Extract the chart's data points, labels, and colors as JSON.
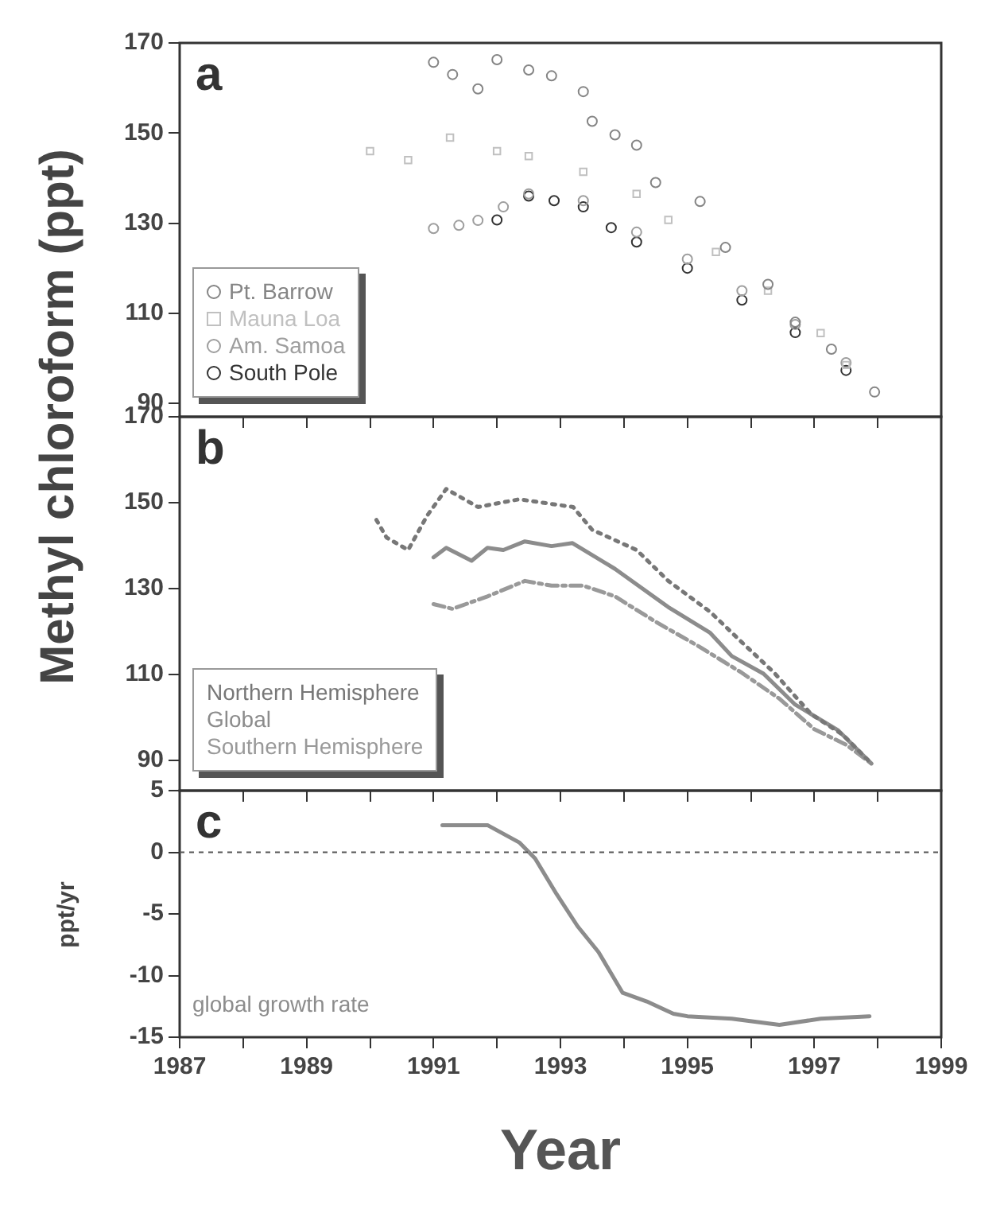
{
  "chart_data": [
    {
      "type": "scatter",
      "ylabel": "Methyl chloroform (ppt)",
      "annotations": [
        "a"
      ],
      "xlim": [
        1987,
        1999
      ],
      "ylim": [
        87,
        170
      ],
      "yticks": [
        90,
        110,
        130,
        150,
        170
      ],
      "xticks": [
        1987,
        {
          "value": 1988,
          "label": null
        },
        1989,
        {
          "value": 1990,
          "label": null
        },
        1991,
        {
          "value": 1992,
          "label": null
        },
        1993,
        {
          "value": 1994,
          "label": null
        },
        1995,
        {
          "value": 1996,
          "label": null
        },
        1997,
        {
          "value": 1998,
          "label": null
        },
        1999
      ],
      "tick_labels": "y",
      "grid": false,
      "legend": "bottom left",
      "series": [
        {
          "name": "Pt. Barrow",
          "color": "#858585",
          "marker": "circle",
          "x": [
            1991.0,
            1991.3,
            1991.7,
            1992.0,
            1992.5,
            1992.86,
            1993.36,
            1993.5,
            1993.86,
            1994.2,
            1994.5,
            1995.2,
            1995.6,
            1996.27,
            1996.7,
            1997.27,
            1997.95
          ],
          "values": [
            165.7,
            163,
            159.8,
            166.3,
            164,
            162.7,
            159.2,
            152.6,
            149.6,
            147.3,
            139,
            134.8,
            124.6,
            116.4,
            108,
            102,
            92.5
          ]
        },
        {
          "name": "Mauna Loa",
          "color": "#c0c0c0",
          "marker": "square",
          "x": [
            1990.0,
            1990.6,
            1991.26,
            1992.0,
            1992.5,
            1993.36,
            1994.2,
            1994.7,
            1995.45,
            1996.27,
            1997.1,
            1997.5
          ],
          "values": [
            146,
            144,
            149,
            146,
            144.9,
            141.4,
            136.5,
            130.7,
            123.6,
            115,
            105.6,
            98.5
          ]
        },
        {
          "name": "Am. Samoa",
          "color": "#9e9e9e",
          "marker": "circle",
          "x": [
            1991.0,
            1991.4,
            1991.7,
            1992.1,
            1992.5,
            1993.36,
            1994.2,
            1995.0,
            1995.86,
            1996.7,
            1997.5
          ],
          "values": [
            128.8,
            129.5,
            130.6,
            133.6,
            136.5,
            135,
            128,
            122,
            115,
            107.5,
            99
          ]
        },
        {
          "name": "South Pole",
          "color": "#333333",
          "marker": "circle",
          "x": [
            1992.0,
            1992.5,
            1992.9,
            1993.36,
            1993.8,
            1994.2,
            1995.0,
            1995.86,
            1996.7,
            1997.5
          ],
          "values": [
            130.7,
            136,
            135,
            133.6,
            129,
            125.8,
            120,
            112.9,
            105.7,
            97.3
          ]
        }
      ]
    },
    {
      "type": "line",
      "annotations": [
        "b"
      ],
      "xlim": [
        1987,
        1999
      ],
      "ylim": [
        83,
        170
      ],
      "yticks": [
        90,
        110,
        130,
        150,
        170
      ],
      "xticks": [
        1987,
        {
          "value": 1988,
          "label": null
        },
        1989,
        {
          "value": 1990,
          "label": null
        },
        1991,
        {
          "value": 1992,
          "label": null
        },
        1993,
        {
          "value": 1994,
          "label": null
        },
        1995,
        {
          "value": 1996,
          "label": null
        },
        1997,
        {
          "value": 1998,
          "label": null
        },
        1999
      ],
      "tick_labels": "y",
      "grid": false,
      "legend": "bottom left",
      "series": [
        {
          "name": "Northern Hemisphere",
          "color": "#777777",
          "line_style": "dotted",
          "x": [
            1990.1,
            1990.26,
            1990.6,
            1990.9,
            1991.2,
            1991.7,
            1992.35,
            1993.2,
            1993.5,
            1994.2,
            1994.7,
            1995.36,
            1995.86,
            1996.37,
            1996.95,
            1997.45,
            1997.9
          ],
          "values": [
            146,
            141.9,
            139,
            147,
            153.2,
            149,
            150.8,
            149,
            143.7,
            139,
            131.8,
            124.6,
            117.5,
            110.4,
            100.8,
            96,
            89.3
          ]
        },
        {
          "name": "Global",
          "color": "#8c8c8c",
          "line_style": "solid",
          "x": [
            1991.0,
            1991.2,
            1991.6,
            1991.85,
            1992.1,
            1992.44,
            1992.86,
            1993.19,
            1993.86,
            1994.7,
            1995.36,
            1995.7,
            1996.2,
            1996.7,
            1997.37,
            1997.9
          ],
          "values": [
            137.3,
            139.5,
            136.5,
            139.5,
            139,
            141,
            139.9,
            140.6,
            134.6,
            125.7,
            119.7,
            114.3,
            110.2,
            103,
            97.1,
            89.3
          ]
        },
        {
          "name": "Southern Hemisphere",
          "color": "#999999",
          "line_style": "dashed",
          "x": [
            1991.0,
            1991.3,
            1991.85,
            1992.44,
            1992.86,
            1993.36,
            1993.86,
            1994.5,
            1995.2,
            1995.86,
            1996.45,
            1997.0,
            1997.5,
            1997.9
          ],
          "values": [
            126.4,
            125.3,
            128.2,
            131.8,
            130.7,
            130.7,
            128.2,
            122.3,
            116.4,
            110.4,
            104.4,
            97.3,
            93.7,
            89.3
          ]
        }
      ]
    },
    {
      "type": "line",
      "ylabel": "ppt/yr",
      "xlabel": "Year",
      "annotations": [
        "c"
      ],
      "xlim": [
        1987,
        1999
      ],
      "ylim": [
        -15,
        5
      ],
      "yticks": [
        -15,
        -10,
        -5,
        0,
        5
      ],
      "xticks": [
        1987,
        {
          "value": 1988,
          "label": null
        },
        1989,
        {
          "value": 1990,
          "label": null
        },
        1991,
        {
          "value": 1992,
          "label": null
        },
        1993,
        {
          "value": 1994,
          "label": null
        },
        1995,
        {
          "value": 1996,
          "label": null
        },
        1997,
        {
          "value": 1998,
          "label": null
        },
        1999
      ],
      "grid": false,
      "legend": "bottom left",
      "ref_lines": [
        {
          "axis": "y",
          "value": 0,
          "line_style": "dashed",
          "color": "#555555"
        }
      ],
      "series": [
        {
          "name": "global growth rate",
          "color": "#8c8c8c",
          "line_style": "solid",
          "x": [
            1991.14,
            1991.85,
            1992.35,
            1992.6,
            1992.94,
            1993.27,
            1993.6,
            1993.98,
            1994.36,
            1994.78,
            1995.0,
            1995.7,
            1996.45,
            1997.1,
            1997.87
          ],
          "values": [
            2.2,
            2.2,
            0.8,
            -0.5,
            -3.4,
            -6.0,
            -8.1,
            -11.4,
            -12.1,
            -13.1,
            -13.3,
            -13.5,
            -14.0,
            -13.5,
            -13.3
          ]
        }
      ]
    }
  ]
}
